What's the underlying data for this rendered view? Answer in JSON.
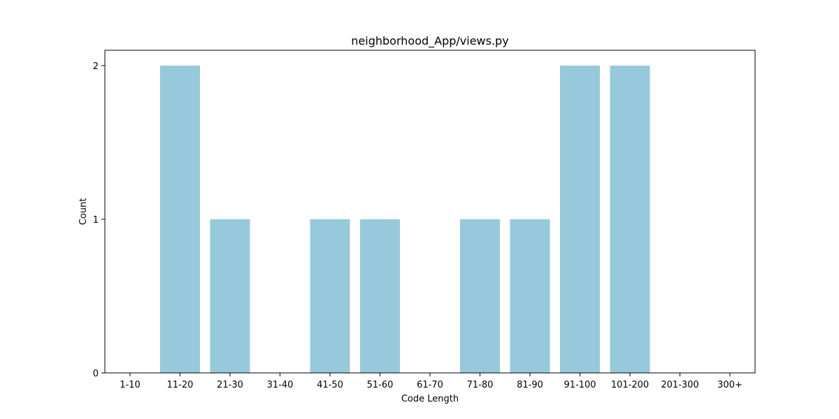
{
  "chart_data": {
    "type": "bar",
    "title": "neighborhood_App/views.py",
    "xlabel": "Code Length",
    "ylabel": "Count",
    "categories": [
      "1-10",
      "11-20",
      "21-30",
      "31-40",
      "41-50",
      "51-60",
      "61-70",
      "71-80",
      "81-90",
      "91-100",
      "101-200",
      "201-300",
      "300+"
    ],
    "values": [
      0,
      2,
      1,
      0,
      1,
      1,
      0,
      1,
      1,
      2,
      2,
      0,
      0
    ],
    "yticks": [
      0,
      1,
      2
    ],
    "ytick_labels": [
      "0",
      "1",
      "2"
    ],
    "ylim": [
      0,
      2.1
    ],
    "grid": false,
    "legend": "none",
    "colors": {
      "bar": "#96c9dc",
      "axis": "#000000",
      "background": "#ffffff"
    }
  }
}
